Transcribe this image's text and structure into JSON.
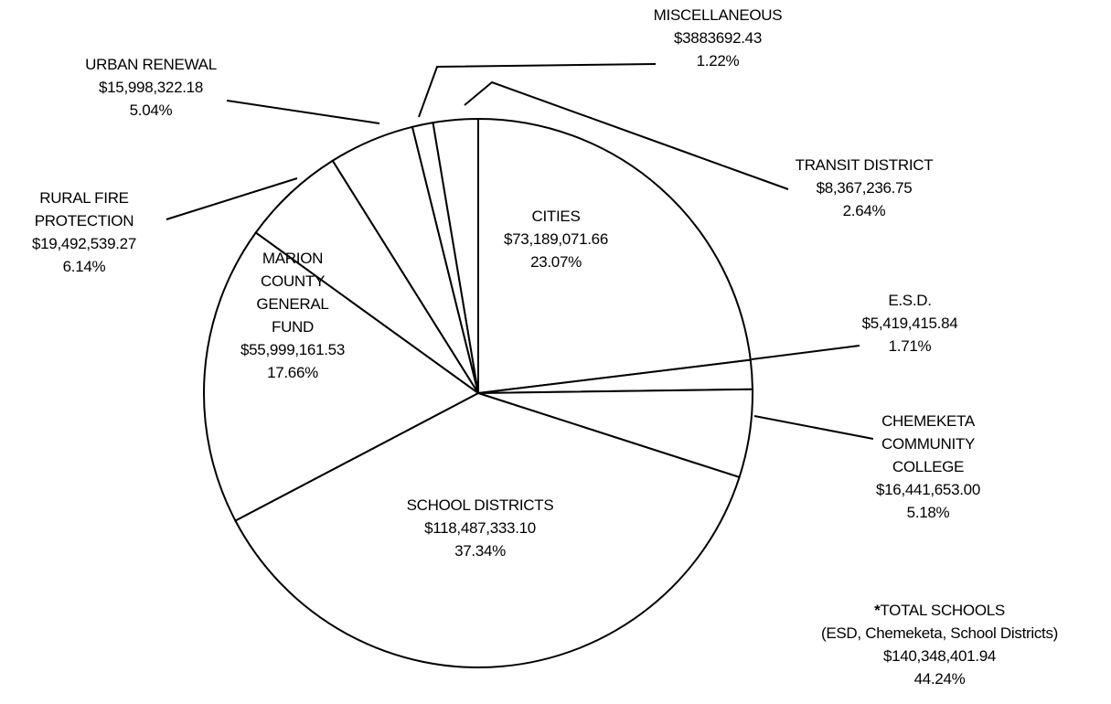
{
  "chart_data": {
    "type": "pie",
    "categories": [
      "CITIES",
      "E.S.D.",
      "CHEMEKETA COMMUNITY COLLEGE",
      "SCHOOL DISTRICTS",
      "MARION COUNTY GENERAL FUND",
      "RURAL FIRE PROTECTION",
      "URBAN RENEWAL",
      "MISCELLANEOUS",
      "TRANSIT DISTRICT"
    ],
    "values": [
      73189071.66,
      5419415.84,
      16441653.0,
      118487333.1,
      55999161.53,
      19492539.27,
      15998322.18,
      3883692.43,
      8367236.75
    ],
    "value_labels": [
      "$73,189,071.66",
      "$5,419,415.84",
      "$16,441,653.00",
      "$118,487,333.10",
      "$55,999,161.53",
      "$19,492,539.27",
      "$15,998,322.18",
      "$3883692.43",
      "$8,367,236.75"
    ],
    "percent_labels": [
      "23.07%",
      "1.71%",
      "5.18%",
      "37.34%",
      "17.66%",
      "6.14%",
      "5.04%",
      "1.22%",
      "2.64%"
    ],
    "color": "#ffffff",
    "annotation": {
      "marker": "*",
      "title": "TOTAL SCHOOLS",
      "detail": "(ESD, Chemeketa, School Districts)",
      "amount": "$140,348,401.94",
      "percent": "44.24%"
    }
  }
}
